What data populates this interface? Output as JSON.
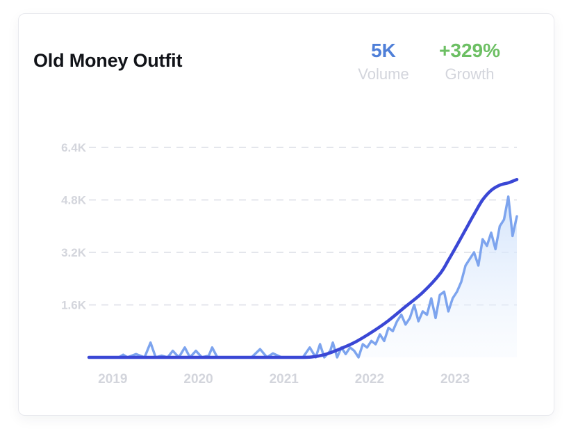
{
  "card": {
    "title": "Old Money Outfit",
    "stats": {
      "volume_value": "5K",
      "volume_label": "Volume",
      "growth_value": "+329%",
      "growth_label": "Growth"
    }
  },
  "colors": {
    "volume_accent": "#4f7fd8",
    "growth_accent": "#6cbf63",
    "raw_line": "#7da4ee",
    "trend_line": "#3a47d5",
    "grid": "#e4e6ec",
    "tick_text": "#d3d5dc"
  },
  "chart_data": {
    "type": "line",
    "title": "",
    "xlabel": "",
    "ylabel": "",
    "ylim": [
      0,
      6400
    ],
    "xlim": [
      2018.9,
      2023.9
    ],
    "y_ticks": [
      {
        "value": 1600,
        "label": "1.6K"
      },
      {
        "value": 3200,
        "label": "3.2K"
      },
      {
        "value": 4800,
        "label": "4.8K"
      },
      {
        "value": 6400,
        "label": "6.4K"
      }
    ],
    "x_ticks": [
      {
        "value": 2019.0,
        "label": "2019"
      },
      {
        "value": 2020.0,
        "label": "2020"
      },
      {
        "value": 2021.0,
        "label": "2021"
      },
      {
        "value": 2022.0,
        "label": "2022"
      },
      {
        "value": 2023.0,
        "label": "2023"
      }
    ],
    "grid": "horizontal dashed",
    "legend": "none",
    "series": [
      {
        "kind": "raw",
        "x": [
          2018.9,
          2019.25,
          2019.3,
          2019.35,
          2019.45,
          2019.55,
          2019.62,
          2019.68,
          2019.75,
          2019.82,
          2019.88,
          2019.95,
          2020.02,
          2020.08,
          2020.15,
          2020.22,
          2020.3,
          2020.34,
          2020.4,
          2020.5,
          2020.65,
          2020.8,
          2020.9,
          2020.98,
          2021.05,
          2021.15,
          2021.25,
          2021.4,
          2021.48,
          2021.55,
          2021.6,
          2021.65,
          2021.72,
          2021.75,
          2021.8,
          2021.85,
          2021.9,
          2021.95,
          2022.0,
          2022.05,
          2022.1,
          2022.15,
          2022.2,
          2022.25,
          2022.3,
          2022.35,
          2022.4,
          2022.45,
          2022.5,
          2022.55,
          2022.6,
          2022.65,
          2022.7,
          2022.75,
          2022.8,
          2022.85,
          2022.9,
          2022.95,
          2023.0,
          2023.05,
          2023.1,
          2023.15,
          2023.2,
          2023.25,
          2023.3,
          2023.35,
          2023.4,
          2023.45,
          2023.5,
          2023.55,
          2023.6,
          2023.65,
          2023.7,
          2023.75,
          2023.8,
          2023.85,
          2023.9
        ],
        "y": [
          0,
          0,
          80,
          0,
          100,
          0,
          450,
          0,
          50,
          0,
          200,
          0,
          300,
          0,
          200,
          0,
          50,
          300,
          0,
          0,
          0,
          0,
          250,
          0,
          120,
          0,
          0,
          0,
          300,
          0,
          400,
          0,
          200,
          450,
          0,
          300,
          100,
          300,
          200,
          0,
          400,
          300,
          500,
          400,
          700,
          500,
          900,
          800,
          1100,
          1300,
          1000,
          1200,
          1600,
          1100,
          1400,
          1300,
          1800,
          1200,
          1900,
          2000,
          1400,
          1800,
          2000,
          2300,
          2800,
          3000,
          3200,
          2800,
          3600,
          3400,
          3800,
          3300,
          4000,
          4200,
          4900,
          3700,
          4300
        ]
      },
      {
        "kind": "trend",
        "x": [
          2018.9,
          2019.5,
          2020.0,
          2020.5,
          2021.0,
          2021.3,
          2021.5,
          2021.65,
          2021.8,
          2022.0,
          2022.2,
          2022.4,
          2022.6,
          2022.8,
          2023.0,
          2023.1,
          2023.2,
          2023.3,
          2023.4,
          2023.5,
          2023.6,
          2023.7,
          2023.8,
          2023.9
        ],
        "y": [
          0,
          0,
          0,
          0,
          0,
          0,
          10,
          80,
          220,
          450,
          760,
          1120,
          1550,
          1980,
          2540,
          2960,
          3420,
          3890,
          4360,
          4800,
          5090,
          5250,
          5320,
          5420
        ]
      }
    ]
  }
}
